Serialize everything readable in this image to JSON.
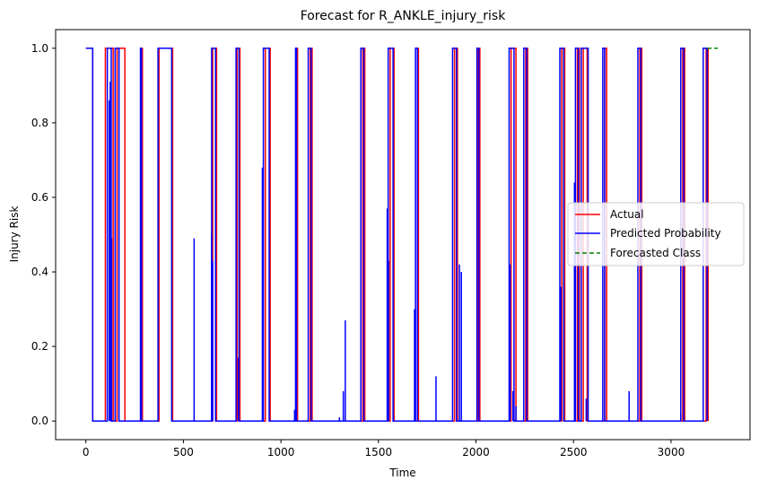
{
  "chart_data": {
    "type": "line",
    "title": "Forecast for R_ANKLE_injury_risk",
    "xlabel": "Time",
    "ylabel": "Injury Risk",
    "xlim": [
      -155,
      3405
    ],
    "ylim": [
      -0.05,
      1.05
    ],
    "xticks": [
      0,
      500,
      1000,
      1500,
      2000,
      2500,
      3000
    ],
    "yticks": [
      0.0,
      0.2,
      0.4,
      0.6,
      0.8,
      1.0
    ],
    "xtick_labels": [
      "0",
      "500",
      "1000",
      "1500",
      "2000",
      "2500",
      "3000"
    ],
    "ytick_labels": [
      "0.0",
      "0.2",
      "0.4",
      "0.6",
      "0.8",
      "1.0"
    ],
    "grid": false,
    "legend_position": "center-right",
    "series": [
      {
        "name": "Actual",
        "color": "#ff0000",
        "style": "solid",
        "high_intervals": [
          [
            0,
            35
          ],
          [
            100,
            140
          ],
          [
            160,
            200
          ],
          [
            285,
            290
          ],
          [
            375,
            445
          ],
          [
            650,
            670
          ],
          [
            775,
            790
          ],
          [
            920,
            945
          ],
          [
            1080,
            1085
          ],
          [
            1150,
            1160
          ],
          [
            1420,
            1430
          ],
          [
            1560,
            1580
          ],
          [
            1700,
            1705
          ],
          [
            1890,
            1905
          ],
          [
            2010,
            2020
          ],
          [
            2180,
            2205
          ],
          [
            2255,
            2265
          ],
          [
            2440,
            2455
          ],
          [
            2520,
            2530
          ],
          [
            2550,
            2570
          ],
          [
            2660,
            2670
          ],
          [
            2840,
            2850
          ],
          [
            3060,
            3070
          ],
          [
            3180,
            3190
          ]
        ],
        "note_on": "piecewise 0/1 step signal"
      },
      {
        "name": "Predicted Probability",
        "color": "#0000ff",
        "style": "solid",
        "high_intervals": [
          [
            0,
            35
          ],
          [
            110,
            130
          ],
          [
            150,
            170
          ],
          [
            280,
            285
          ],
          [
            370,
            440
          ],
          [
            645,
            665
          ],
          [
            770,
            785
          ],
          [
            910,
            940
          ],
          [
            1075,
            1080
          ],
          [
            1140,
            1155
          ],
          [
            1410,
            1425
          ],
          [
            1550,
            1575
          ],
          [
            1690,
            1700
          ],
          [
            1880,
            1900
          ],
          [
            2005,
            2015
          ],
          [
            2170,
            2195
          ],
          [
            2245,
            2260
          ],
          [
            2430,
            2450
          ],
          [
            2510,
            2525
          ],
          [
            2540,
            2575
          ],
          [
            2650,
            2660
          ],
          [
            2830,
            2845
          ],
          [
            3050,
            3065
          ],
          [
            3165,
            3185
          ]
        ],
        "spikes": [
          {
            "x": 120,
            "y": 0.86
          },
          {
            "x": 125,
            "y": 0.91
          },
          {
            "x": 132,
            "y": 0.49
          },
          {
            "x": 555,
            "y": 0.49
          },
          {
            "x": 645,
            "y": 0.5
          },
          {
            "x": 650,
            "y": 0.43
          },
          {
            "x": 782,
            "y": 0.17
          },
          {
            "x": 905,
            "y": 0.68
          },
          {
            "x": 1070,
            "y": 0.03
          },
          {
            "x": 1300,
            "y": 0.01
          },
          {
            "x": 1320,
            "y": 0.08
          },
          {
            "x": 1330,
            "y": 0.27
          },
          {
            "x": 1545,
            "y": 0.57
          },
          {
            "x": 1552,
            "y": 0.43
          },
          {
            "x": 1685,
            "y": 0.3
          },
          {
            "x": 1795,
            "y": 0.12
          },
          {
            "x": 1915,
            "y": 0.42
          },
          {
            "x": 1925,
            "y": 0.4
          },
          {
            "x": 2175,
            "y": 0.42
          },
          {
            "x": 2190,
            "y": 0.08
          },
          {
            "x": 2205,
            "y": 0.04
          },
          {
            "x": 2435,
            "y": 0.36
          },
          {
            "x": 2505,
            "y": 0.64
          },
          {
            "x": 2565,
            "y": 0.06
          },
          {
            "x": 2785,
            "y": 0.08
          },
          {
            "x": 3050,
            "y": 0.02
          }
        ]
      },
      {
        "name": "Forecasted Class",
        "color": "#008000",
        "style": "dashed",
        "x": [
          3185,
          3240
        ],
        "values": [
          1.0,
          1.0
        ]
      }
    ]
  }
}
